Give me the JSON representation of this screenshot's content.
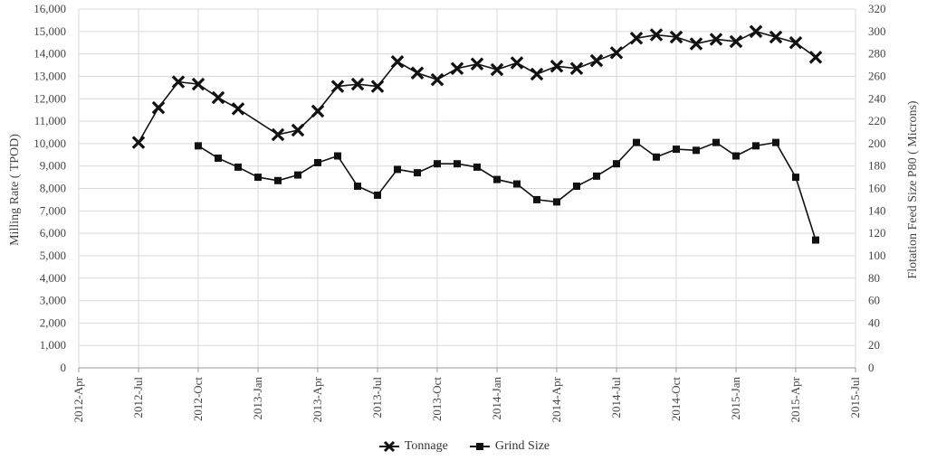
{
  "chart_data": {
    "type": "line",
    "title": "",
    "ylabel_left": "Milling Rate ( TPOD)",
    "ylabel_right": "Flotation Feed Size P80 ( Microns)",
    "xlabel": "",
    "x_ticks": [
      "2012-Apr",
      "2012-Jul",
      "2012-Oct",
      "2013-Jan",
      "2013-Apr",
      "2013-Jul",
      "2013-Oct",
      "2014-Jan",
      "2014-Apr",
      "2014-Jul",
      "2014-Oct",
      "2015-Jan",
      "2015-Apr",
      "2015-Jul"
    ],
    "ylim_left": [
      0,
      16000
    ],
    "ylim_right": [
      0,
      320
    ],
    "y_ticks_left": [
      "0",
      "1,000",
      "2,000",
      "3,000",
      "4,000",
      "5,000",
      "6,000",
      "7,000",
      "8,000",
      "9,000",
      "10,000",
      "11,000",
      "12,000",
      "13,000",
      "14,000",
      "15,000",
      "16,000"
    ],
    "y_ticks_right": [
      "0",
      "20",
      "40",
      "60",
      "80",
      "100",
      "120",
      "140",
      "160",
      "180",
      "200",
      "220",
      "240",
      "260",
      "280",
      "300",
      "320"
    ],
    "grid": true,
    "legend_position": "bottom",
    "series": [
      {
        "name": "Tonnage",
        "axis": "left",
        "marker": "x",
        "x": [
          "2012-Jul",
          "2012-Aug",
          "2012-Sep",
          "2012-Oct",
          "2012-Nov",
          "2012-Dec",
          "2013-Feb",
          "2013-Mar",
          "2013-Apr",
          "2013-May",
          "2013-Jun",
          "2013-Jul",
          "2013-Aug",
          "2013-Sep",
          "2013-Oct",
          "2013-Nov",
          "2013-Dec",
          "2014-Jan",
          "2014-Feb",
          "2014-Mar",
          "2014-Apr",
          "2014-May",
          "2014-Jun",
          "2014-Jul",
          "2014-Aug",
          "2014-Sep",
          "2014-Oct",
          "2014-Nov",
          "2014-Dec",
          "2015-Jan",
          "2015-Feb",
          "2015-Mar",
          "2015-Apr",
          "2015-May"
        ],
        "values": [
          10050,
          11600,
          12750,
          12650,
          12050,
          11550,
          10400,
          10600,
          11450,
          12550,
          12650,
          12550,
          13650,
          13150,
          12850,
          13350,
          13550,
          13300,
          13600,
          13100,
          13450,
          13350,
          13700,
          14050,
          14700,
          14850,
          14750,
          14450,
          14650,
          14550,
          15000,
          14750,
          14500,
          13850
        ]
      },
      {
        "name": "Grind Size",
        "axis": "right",
        "marker": "square",
        "x": [
          "2012-Oct",
          "2012-Nov",
          "2012-Dec",
          "2013-Jan",
          "2013-Feb",
          "2013-Mar",
          "2013-Apr",
          "2013-May",
          "2013-Jun",
          "2013-Jul",
          "2013-Aug",
          "2013-Sep",
          "2013-Oct",
          "2013-Nov",
          "2013-Dec",
          "2014-Jan",
          "2014-Feb",
          "2014-Mar",
          "2014-Apr",
          "2014-May",
          "2014-Jun",
          "2014-Jul",
          "2014-Aug",
          "2014-Sep",
          "2014-Oct",
          "2014-Nov",
          "2014-Dec",
          "2015-Jan",
          "2015-Feb",
          "2015-Mar",
          "2015-Apr",
          "2015-May"
        ],
        "values": [
          198,
          187,
          179,
          170,
          167,
          172,
          183,
          189,
          162,
          154,
          177,
          174,
          182,
          182,
          179,
          168,
          164,
          150,
          148,
          162,
          171,
          182,
          201,
          188,
          195,
          194,
          201,
          189,
          198,
          201,
          170,
          114
        ]
      }
    ]
  },
  "legend": {
    "tonnage_label": "Tonnage",
    "grind_label": "Grind Size"
  }
}
